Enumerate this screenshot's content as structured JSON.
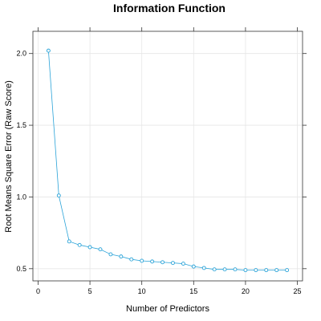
{
  "chart_data": {
    "type": "line",
    "title": "Information Function",
    "xlabel": "Number of Predictors",
    "ylabel": "Root Means Square Error (Raw Score)",
    "xlim": [
      -0.5,
      25.5
    ],
    "ylim": [
      0.415,
      2.155
    ],
    "x_ticks": [
      0,
      5,
      10,
      15,
      20,
      25
    ],
    "y_ticks": [
      0.5,
      1.0,
      1.5,
      2.0
    ],
    "x_tick_labels": [
      "0",
      "5",
      "10",
      "15",
      "20",
      "25"
    ],
    "y_tick_labels": [
      "0.5",
      "1.0",
      "1.5",
      "2.0"
    ],
    "grid": true,
    "series": [
      {
        "color": "#2aa3d8",
        "x": [
          1,
          2,
          3,
          4,
          5,
          6,
          7,
          8,
          9,
          10,
          11,
          12,
          13,
          14,
          15,
          16,
          17,
          18,
          19,
          20,
          21,
          22,
          23,
          24
        ],
        "values": [
          2.02,
          1.01,
          0.69,
          0.665,
          0.65,
          0.635,
          0.6,
          0.585,
          0.565,
          0.555,
          0.55,
          0.545,
          0.54,
          0.535,
          0.515,
          0.505,
          0.495,
          0.495,
          0.495,
          0.49,
          0.49,
          0.49,
          0.49,
          0.49
        ]
      }
    ]
  }
}
